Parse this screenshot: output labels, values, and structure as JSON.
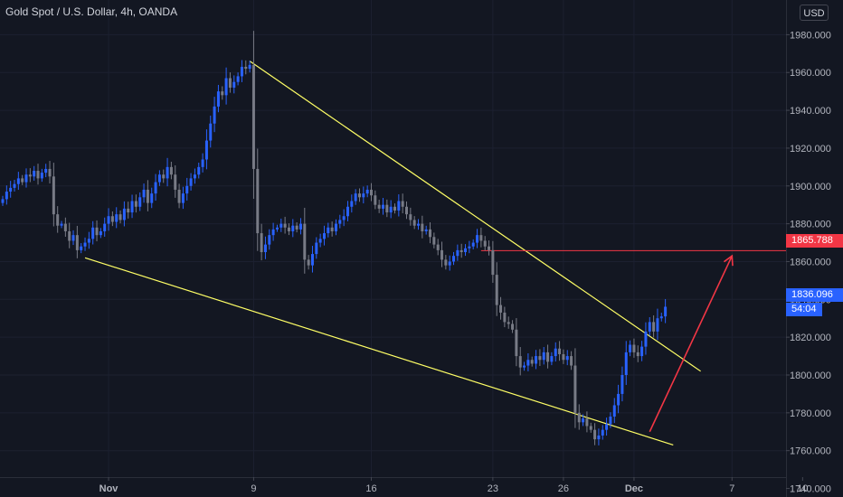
{
  "header": {
    "title": "Gold Spot / U.S. Dollar, 4h, OANDA",
    "currency_button": "USD"
  },
  "price_tags": {
    "target_level": "1865.788",
    "last_price": "1836.096",
    "bar_countdown": "54:04"
  },
  "colors": {
    "background": "#131722",
    "axis_text": "#b2b5be",
    "candle_up": "#2962ff",
    "candle_down": "#787b86",
    "trendline": "#ffff66",
    "target_line": "#f23645",
    "arrow": "#f23645"
  },
  "chart_data": {
    "type": "candlestick",
    "instrument": "Gold Spot / U.S. Dollar",
    "timeframe": "4h",
    "source": "OANDA",
    "ylim": [
      1735,
      1995
    ],
    "y_ticks": [
      1740,
      1760,
      1780,
      1800,
      1820,
      1840,
      1860,
      1880,
      1900,
      1920,
      1940,
      1960,
      1980
    ],
    "y_tick_labels": [
      "1740.000",
      "1760.000",
      "1780.000",
      "1800.000",
      "1820.000",
      "1840.000",
      "1860.000",
      "1880.000",
      "1900.000",
      "1920.000",
      "1940.000",
      "1960.000",
      "1980.000"
    ],
    "x_ticks": [
      {
        "label": "Nov",
        "index": 27
      },
      {
        "label": "9",
        "index": 64
      },
      {
        "label": "16",
        "index": 94
      },
      {
        "label": "23",
        "index": 125
      },
      {
        "label": "26",
        "index": 143
      },
      {
        "label": "Dec",
        "index": 161
      },
      {
        "label": "7",
        "index": 186
      },
      {
        "label": "10",
        "index": 204
      }
    ],
    "closes": [
      1893,
      1897,
      1899,
      1901,
      1904,
      1902,
      1906,
      1905,
      1908,
      1904,
      1907,
      1909,
      1905,
      1885,
      1879,
      1880,
      1876,
      1871,
      1874,
      1866,
      1868,
      1870,
      1872,
      1878,
      1874,
      1876,
      1880,
      1884,
      1881,
      1885,
      1882,
      1888,
      1886,
      1892,
      1889,
      1894,
      1898,
      1891,
      1896,
      1902,
      1906,
      1904,
      1910,
      1906,
      1898,
      1891,
      1896,
      1900,
      1904,
      1906,
      1910,
      1914,
      1924,
      1933,
      1942,
      1950,
      1948,
      1957,
      1952,
      1955,
      1958,
      1963,
      1962,
      1964,
      1909,
      1875,
      1865,
      1869,
      1874,
      1877,
      1878,
      1880,
      1878,
      1876,
      1879,
      1877,
      1880,
      1861,
      1858,
      1864,
      1870,
      1872,
      1875,
      1878,
      1876,
      1880,
      1882,
      1884,
      1889,
      1892,
      1896,
      1894,
      1896,
      1898,
      1895,
      1890,
      1888,
      1890,
      1886,
      1889,
      1887,
      1892,
      1889,
      1885,
      1882,
      1879,
      1880,
      1876,
      1877,
      1873,
      1869,
      1866,
      1861,
      1858,
      1860,
      1863,
      1866,
      1865,
      1867,
      1868,
      1870,
      1874,
      1871,
      1868,
      1866,
      1853,
      1837,
      1833,
      1828,
      1827,
      1824,
      1810,
      1804,
      1805,
      1808,
      1806,
      1810,
      1808,
      1812,
      1807,
      1810,
      1814,
      1811,
      1808,
      1810,
      1805,
      1780,
      1775,
      1777,
      1773,
      1771,
      1766,
      1768,
      1771,
      1774,
      1778,
      1784,
      1790,
      1800,
      1812,
      1816,
      1812,
      1810,
      1815,
      1823,
      1828,
      1823,
      1830,
      1831,
      1836.1
    ],
    "target_level": 1865.788,
    "last_price": 1836.096,
    "annotations": [
      {
        "type": "trendline",
        "name": "upper-wedge-line",
        "from": {
          "index": 63,
          "price": 1966
        },
        "to": {
          "index": 178,
          "price": 1802
        }
      },
      {
        "type": "trendline",
        "name": "lower-wedge-line",
        "from": {
          "index": 21,
          "price": 1862
        },
        "to": {
          "index": 171,
          "price": 1763
        }
      },
      {
        "type": "horizontal",
        "name": "target-level-line",
        "price": 1865.788,
        "from_index": 122
      },
      {
        "type": "arrow",
        "name": "projected-move-arrow",
        "from": {
          "index": 165,
          "price": 1770
        },
        "to": {
          "index": 186,
          "price": 1863
        }
      }
    ]
  }
}
